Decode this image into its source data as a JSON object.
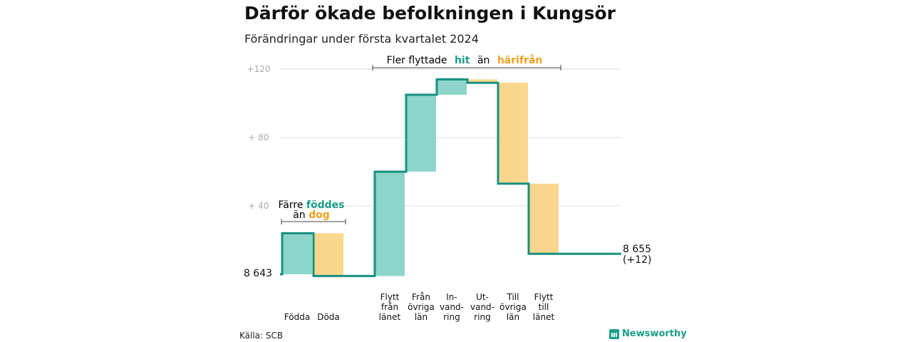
{
  "title": "Därför ökade befolkningen i Kungsör",
  "subtitle": "Förändringar under första kvartalet 2024",
  "source": "Källa: SCB",
  "brand": "Newsworthy",
  "colors": {
    "increase": "#8dd5cb",
    "decrease": "#fbd68e",
    "line": "#169080",
    "teal_text": "#1a9e88",
    "orange_text": "#f0a020"
  },
  "annotations": {
    "left": {
      "line1": "Färre",
      "line1_highlight": "föddes",
      "line2": "än",
      "line2_highlight": "dog"
    },
    "right": {
      "prefix": "Fler flyttade",
      "highlight1": "hit",
      "middle": "än",
      "highlight2": "härifrån"
    }
  },
  "chart_data": {
    "type": "waterfall",
    "title": "Därför ökade befolkningen i Kungsör",
    "subtitle": "Förändringar under första kvartalet 2024",
    "start_value": 8643,
    "start_label": "8 643",
    "end_label": "8 655",
    "end_change_label": "(+12)",
    "ylim": [
      -1,
      120
    ],
    "ytick_values": [
      40,
      80,
      120
    ],
    "ytick_labels": [
      "+ 40",
      "+ 80",
      "+120"
    ],
    "grid": true,
    "steps": [
      {
        "label": [
          "Födda"
        ],
        "delta": 24,
        "kind": "increase"
      },
      {
        "label": [
          "Döda"
        ],
        "delta": -25,
        "kind": "decrease"
      },
      {
        "label": [
          "Flytt",
          "från",
          "länet"
        ],
        "delta": 61,
        "kind": "increase"
      },
      {
        "label": [
          "Från",
          "övriga",
          "län"
        ],
        "delta": 45,
        "kind": "increase"
      },
      {
        "label": [
          "In-",
          "vand-",
          "ring"
        ],
        "delta": 9,
        "kind": "increase"
      },
      {
        "label": [
          "Ut-",
          "vand-",
          "ring"
        ],
        "delta": -2,
        "kind": "decrease"
      },
      {
        "label": [
          "Till",
          "övriga",
          "län"
        ],
        "delta": -59,
        "kind": "decrease"
      },
      {
        "label": [
          "Flytt",
          "till",
          "länet"
        ],
        "delta": -41,
        "kind": "decrease"
      }
    ]
  }
}
